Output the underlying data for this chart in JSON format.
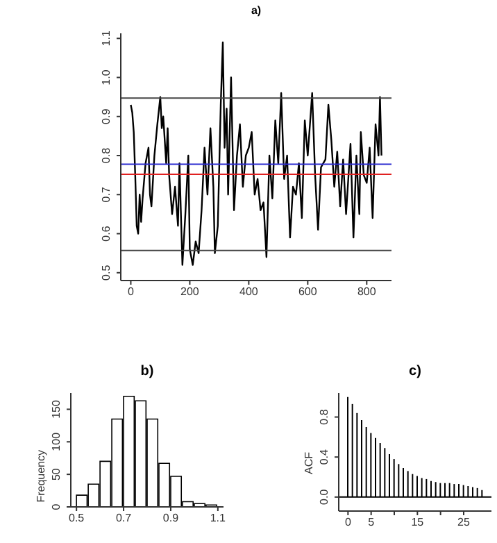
{
  "chart_data": [
    {
      "type": "line",
      "title": "a)",
      "x": [
        0,
        5,
        10,
        15,
        20,
        25,
        30,
        35,
        40,
        50,
        60,
        65,
        70,
        80,
        90,
        100,
        105,
        110,
        120,
        125,
        130,
        140,
        150,
        160,
        165,
        175,
        185,
        195,
        200,
        210,
        220,
        230,
        240,
        250,
        260,
        270,
        280,
        285,
        295,
        305,
        312,
        318,
        325,
        330,
        340,
        350,
        360,
        370,
        380,
        390,
        400,
        410,
        420,
        430,
        440,
        450,
        460,
        470,
        480,
        490,
        500,
        510,
        520,
        530,
        540,
        550,
        560,
        570,
        580,
        590,
        600,
        615,
        625,
        635,
        645,
        660,
        670,
        680,
        690,
        700,
        710,
        720,
        730,
        745,
        755,
        765,
        775,
        780,
        790,
        800,
        810,
        820,
        830,
        840,
        845,
        850
      ],
      "series": [
        {
          "color": "#000000",
          "values": [
            0.93,
            0.91,
            0.86,
            0.75,
            0.62,
            0.6,
            0.7,
            0.63,
            0.69,
            0.78,
            0.82,
            0.7,
            0.67,
            0.8,
            0.88,
            0.95,
            0.87,
            0.9,
            0.78,
            0.87,
            0.75,
            0.65,
            0.72,
            0.62,
            0.78,
            0.52,
            0.65,
            0.8,
            0.56,
            0.52,
            0.58,
            0.55,
            0.66,
            0.82,
            0.7,
            0.87,
            0.72,
            0.55,
            0.62,
            0.93,
            1.09,
            0.82,
            0.92,
            0.7,
            1.0,
            0.66,
            0.8,
            0.88,
            0.72,
            0.8,
            0.82,
            0.86,
            0.7,
            0.74,
            0.66,
            0.68,
            0.54,
            0.8,
            0.69,
            0.89,
            0.78,
            0.96,
            0.74,
            0.8,
            0.59,
            0.72,
            0.7,
            0.78,
            0.64,
            0.89,
            0.8,
            0.96,
            0.75,
            0.61,
            0.77,
            0.79,
            0.93,
            0.84,
            0.72,
            0.81,
            0.67,
            0.79,
            0.65,
            0.83,
            0.59,
            0.8,
            0.65,
            0.86,
            0.75,
            0.73,
            0.82,
            0.64,
            0.88,
            0.8,
            0.95,
            0.8
          ]
        }
      ],
      "xlim": [
        -34,
        884
      ],
      "ylim": [
        0.48,
        1.113
      ],
      "xticks": [
        0,
        200,
        400,
        600,
        800
      ],
      "yticks": [
        0.5,
        0.6,
        0.7,
        0.8,
        0.9,
        {
          "value": 1,
          "label": "1.0"
        },
        1.1
      ],
      "ref_lines": [
        {
          "axis": "y",
          "value": 0.947,
          "color": "#444444"
        },
        {
          "axis": "y",
          "value": 0.557,
          "color": "#444444"
        },
        {
          "axis": "y",
          "value": 0.778,
          "color": "#2a2ad0"
        },
        {
          "axis": "y",
          "value": 0.752,
          "color": "#e02020"
        }
      ]
    },
    {
      "type": "histogram",
      "title": "b)",
      "ylabel": "Frequency",
      "color": "#ffffff",
      "bins": [
        0.5,
        0.55,
        0.6,
        0.65,
        0.7,
        0.75,
        0.8,
        0.85,
        0.9,
        0.95,
        1.0,
        1.05,
        1.1
      ],
      "values": [
        18,
        35,
        70,
        135,
        170,
        163,
        135,
        67,
        47,
        8,
        5,
        3
      ],
      "xlim": [
        0.476,
        1.124
      ],
      "ylim": [
        0,
        175
      ],
      "xticks": [
        0.5,
        0.7,
        0.9,
        1.1
      ],
      "yticks": [
        0,
        50,
        100,
        150
      ]
    },
    {
      "type": "bar",
      "title": "c)",
      "ylabel": "ACF",
      "color": "#000000",
      "x": [
        0,
        1,
        2,
        3,
        4,
        5,
        6,
        7,
        8,
        9,
        10,
        11,
        12,
        13,
        14,
        15,
        16,
        17,
        18,
        19,
        20,
        21,
        22,
        23,
        24,
        25,
        26,
        27,
        28,
        29
      ],
      "values": [
        1.0,
        0.93,
        0.84,
        0.77,
        0.7,
        0.64,
        0.59,
        0.54,
        0.49,
        0.43,
        0.38,
        0.33,
        0.29,
        0.26,
        0.23,
        0.21,
        0.19,
        0.18,
        0.16,
        0.15,
        0.14,
        0.14,
        0.14,
        0.13,
        0.13,
        0.12,
        0.11,
        0.1,
        0.09,
        0.07
      ],
      "xlim": [
        -2,
        31
      ],
      "ylim": [
        -0.14,
        1.04
      ],
      "xticks": [
        0,
        5,
        {
          "value": 10,
          "label": null
        },
        15,
        {
          "value": 20,
          "label": null
        },
        25
      ],
      "yticks": [
        {
          "value": 0,
          "label": "0.0"
        },
        0.4,
        0.8
      ],
      "ref_lines": [
        {
          "axis": "y",
          "value": 0,
          "color": "#000000"
        }
      ]
    }
  ]
}
